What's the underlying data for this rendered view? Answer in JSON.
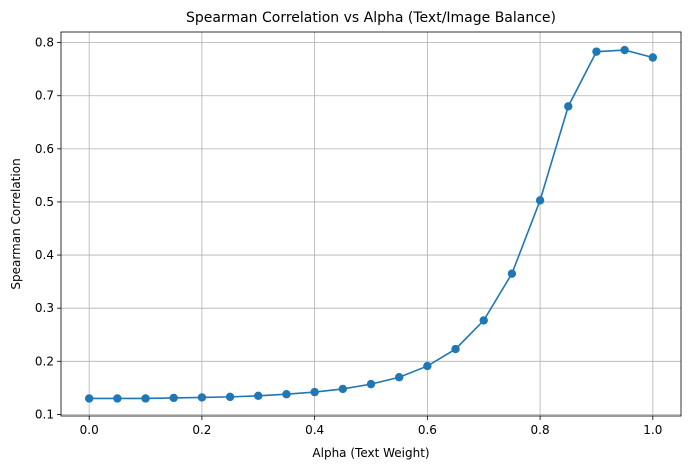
{
  "chart_data": {
    "type": "line",
    "title": "Spearman Correlation vs Alpha (Text/Image Balance)",
    "xlabel": "Alpha (Text Weight)",
    "ylabel": "Spearman Correlation",
    "xlim": [
      -0.05,
      1.05
    ],
    "ylim": [
      0.097,
      0.82
    ],
    "xticks": [
      0.0,
      0.2,
      0.4,
      0.6,
      0.8,
      1.0
    ],
    "xtick_labels": [
      "0.0",
      "0.2",
      "0.4",
      "0.6",
      "0.8",
      "1.0"
    ],
    "yticks": [
      0.1,
      0.2,
      0.3,
      0.4,
      0.5,
      0.6,
      0.7,
      0.8
    ],
    "ytick_labels": [
      "0.1",
      "0.2",
      "0.3",
      "0.4",
      "0.5",
      "0.6",
      "0.7",
      "0.8"
    ],
    "grid": true,
    "color": "#1f77b4",
    "marker": "circle",
    "series": [
      {
        "x": [
          0.0,
          0.05,
          0.1,
          0.15,
          0.2,
          0.25,
          0.3,
          0.35,
          0.4,
          0.45,
          0.5,
          0.55,
          0.6,
          0.65,
          0.7,
          0.75,
          0.8,
          0.85,
          0.9,
          0.95,
          1.0
        ],
        "y": [
          0.13,
          0.13,
          0.13,
          0.131,
          0.132,
          0.133,
          0.135,
          0.138,
          0.142,
          0.148,
          0.157,
          0.17,
          0.191,
          0.223,
          0.277,
          0.365,
          0.503,
          0.68,
          0.783,
          0.786,
          0.772
        ]
      }
    ]
  }
}
